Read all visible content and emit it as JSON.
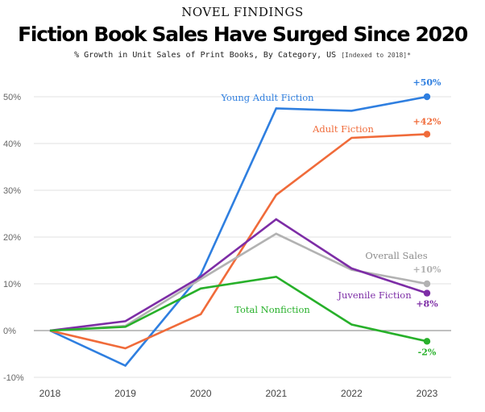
{
  "header": {
    "kicker": "NOVEL FINDINGS",
    "title": "Fiction Book Sales Have Surged Since 2020",
    "subtitle": "% Growth in Unit Sales of Print Books, By Category, US",
    "subtitle_note": "[Indexed to 2018]*"
  },
  "chart_data": {
    "type": "line",
    "title": "Fiction Book Sales Have Surged Since 2020",
    "subtitle": "% Growth in Unit Sales of Print Books, By Category, US [Indexed to 2018]*",
    "xlabel": "",
    "ylabel": "",
    "x": [
      "2018",
      "2019",
      "2020",
      "2021",
      "2022",
      "2023"
    ],
    "ylim": [
      -10,
      50
    ],
    "yticks": [
      -10,
      0,
      10,
      20,
      30,
      40,
      50
    ],
    "ytick_labels": [
      "-10%",
      "0%",
      "10%",
      "20%",
      "30%",
      "40%",
      "50%"
    ],
    "grid": "horizontal",
    "legend": "direct labels",
    "series": [
      {
        "name": "Young Adult Fiction",
        "color": "#2f7fe0",
        "values": [
          0,
          -7.5,
          12,
          47.5,
          47,
          50
        ],
        "end_label": "+50%"
      },
      {
        "name": "Adult Fiction",
        "color": "#f06b3a",
        "values": [
          0,
          -3.8,
          3.5,
          29,
          41.2,
          42
        ],
        "end_label": "+42%"
      },
      {
        "name": "Overall Sales",
        "color": "#b2b2b2",
        "values": [
          0,
          1,
          11,
          20.7,
          13,
          10
        ],
        "end_label": "+10%"
      },
      {
        "name": "Juvenile Fiction",
        "color": "#7d2da6",
        "values": [
          0,
          2,
          11.5,
          23.8,
          13.3,
          8
        ],
        "end_label": "+8%"
      },
      {
        "name": "Total Nonfiction",
        "color": "#27b02a",
        "values": [
          0,
          0.8,
          9,
          11.5,
          1.3,
          -2.3
        ],
        "end_label": "-2%"
      }
    ]
  }
}
